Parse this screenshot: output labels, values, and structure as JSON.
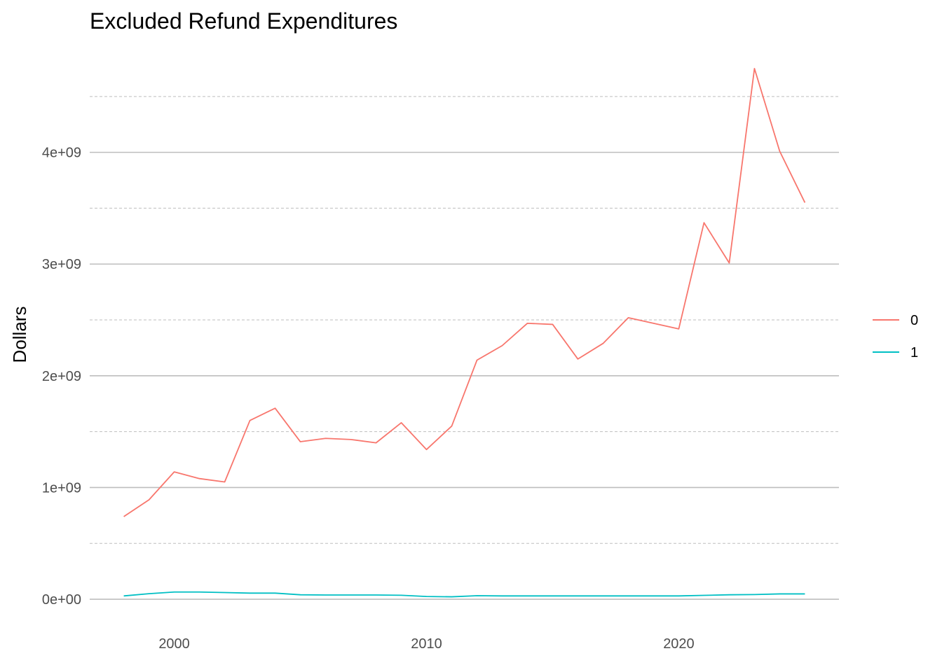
{
  "chart_data": {
    "type": "line",
    "title": "Excluded Refund Expenditures",
    "xlabel": "",
    "ylabel": "Dollars",
    "x": [
      1998,
      1999,
      2000,
      2001,
      2002,
      2003,
      2004,
      2005,
      2006,
      2007,
      2008,
      2009,
      2010,
      2011,
      2012,
      2013,
      2014,
      2015,
      2016,
      2017,
      2018,
      2019,
      2020,
      2021,
      2022,
      2023,
      2024,
      2025
    ],
    "series": [
      {
        "name": "0",
        "color": "#F8766D",
        "values": [
          740000000,
          890000000,
          1140000000,
          1080000000,
          1050000000,
          1600000000,
          1710000000,
          1410000000,
          1440000000,
          1430000000,
          1400000000,
          1580000000,
          1340000000,
          1550000000,
          2140000000,
          2270000000,
          2470000000,
          2460000000,
          2150000000,
          2290000000,
          2520000000,
          2470000000,
          2420000000,
          3370000000,
          3010000000,
          4750000000,
          4010000000,
          3550000000
        ]
      },
      {
        "name": "1",
        "color": "#00BFC4",
        "values": [
          30000000,
          50000000,
          65000000,
          65000000,
          60000000,
          55000000,
          55000000,
          40000000,
          38000000,
          38000000,
          38000000,
          36000000,
          25000000,
          22000000,
          32000000,
          30000000,
          30000000,
          30000000,
          30000000,
          30000000,
          30000000,
          30000000,
          30000000,
          35000000,
          40000000,
          42000000,
          48000000,
          48000000
        ]
      }
    ],
    "x_ticks": [
      2000,
      2010,
      2020
    ],
    "y_ticks": [
      0,
      1000000000,
      2000000000,
      3000000000,
      4000000000
    ],
    "y_tick_labels": [
      "0e+00",
      "1e+09",
      "2e+09",
      "3e+09",
      "4e+09"
    ],
    "y_minor_ticks": [
      500000000,
      1500000000,
      2500000000,
      3500000000,
      4500000000
    ],
    "xlim": [
      1996.65,
      2026.35
    ],
    "ylim": [
      -237500000,
      4987500000
    ],
    "grid": true,
    "legend_position": "right",
    "grid_color": "#bebebe"
  }
}
